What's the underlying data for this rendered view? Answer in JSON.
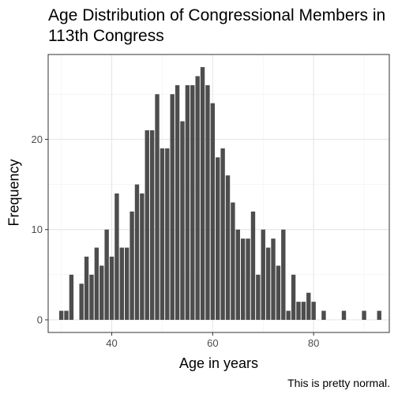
{
  "chart_data": {
    "type": "bar",
    "title": "Age Distribution of Congressional Members in 113th Congress",
    "xlabel": "Age in years",
    "ylabel": "Frequency",
    "caption": "This is pretty normal.",
    "x_ticks": [
      40,
      60,
      80
    ],
    "y_ticks": [
      0,
      10,
      20
    ],
    "xlim": [
      27.4,
      95.0
    ],
    "ylim": [
      -1.4,
      29.4
    ],
    "grid": true,
    "bar_color": "#4d4d4d",
    "x": [
      30,
      31,
      32,
      33,
      34,
      35,
      36,
      37,
      38,
      39,
      40,
      41,
      42,
      43,
      44,
      45,
      46,
      47,
      48,
      49,
      50,
      51,
      52,
      53,
      54,
      55,
      56,
      57,
      58,
      59,
      60,
      61,
      62,
      63,
      64,
      65,
      66,
      67,
      68,
      69,
      70,
      71,
      72,
      73,
      74,
      75,
      76,
      77,
      78,
      79,
      80,
      81,
      82,
      83,
      84,
      85,
      86,
      87,
      88,
      89,
      90,
      91,
      92,
      93
    ],
    "values": [
      1,
      1,
      5,
      0,
      4,
      7,
      5,
      8,
      6,
      10,
      7,
      14,
      8,
      8,
      12,
      15,
      14,
      21,
      21,
      25,
      19,
      19,
      25,
      26,
      22,
      26,
      26,
      27,
      28,
      26,
      24,
      18,
      19,
      16,
      13,
      10,
      9,
      9,
      12,
      5,
      10,
      8,
      9,
      6,
      10,
      1,
      5,
      2,
      2,
      3,
      2,
      0,
      1,
      0,
      0,
      0,
      1,
      0,
      0,
      0,
      1,
      0,
      0,
      1
    ]
  }
}
